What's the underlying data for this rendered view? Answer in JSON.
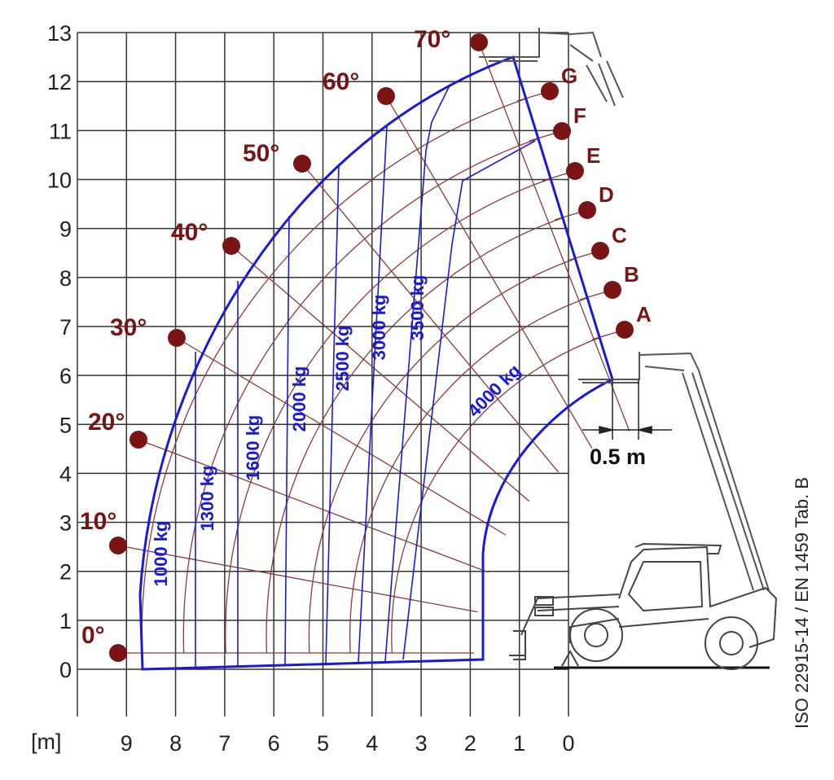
{
  "diagram": {
    "y_unit_label": "[m]",
    "y_ticks": [
      "0",
      "1",
      "2",
      "3",
      "4",
      "5",
      "6",
      "7",
      "8",
      "9",
      "10",
      "11",
      "12",
      "13"
    ],
    "x_ticks": [
      "9",
      "8",
      "7",
      "6",
      "5",
      "4",
      "3",
      "2",
      "1",
      "0"
    ],
    "angles": [
      "0°",
      "10°",
      "20°",
      "30°",
      "40°",
      "50°",
      "60°",
      "70°"
    ],
    "arcs": [
      "A",
      "B",
      "C",
      "D",
      "E",
      "F",
      "G"
    ],
    "loads": [
      "1000 kg",
      "1300 kg",
      "1600 kg",
      "2000 kg",
      "2500 kg",
      "3000 kg",
      "3500 kg",
      "4000 kg"
    ],
    "dimension_label": "0.5 m",
    "standard": "ISO 22915-14  / EN 1459 Tab. B",
    "colors": {
      "envelope": "#1a1ad6",
      "markers": "#7a1414",
      "grid": "#333333",
      "guides": "#8a3a3a"
    }
  }
}
